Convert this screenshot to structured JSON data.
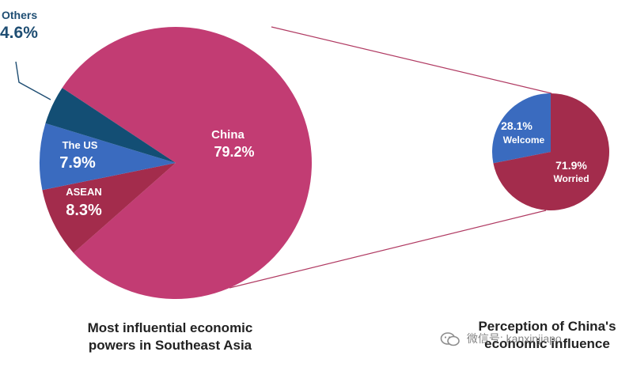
{
  "chart_data": [
    {
      "type": "pie",
      "title": "Most influential economic powers in Southeast Asia",
      "title_lines": [
        "Most influential economic",
        "powers in Southeast Asia"
      ],
      "slices": [
        {
          "name": "China",
          "value": 79.2,
          "label": "79.2%",
          "color": "#c23c73"
        },
        {
          "name": "ASEAN",
          "value": 8.3,
          "label": "8.3%",
          "color": "#a32c4c"
        },
        {
          "name": "The US",
          "value": 7.9,
          "label": "7.9%",
          "color": "#3a6bbf"
        },
        {
          "name": "Others",
          "value": 4.6,
          "label": "4.6%",
          "color": "#134e74"
        }
      ]
    },
    {
      "type": "pie",
      "title": "Perception of China's economic influence",
      "title_lines": [
        "Perception of China's",
        "economic influence"
      ],
      "slices": [
        {
          "name": "Welcome",
          "value": 28.1,
          "label": "28.1%",
          "color": "#3a6bbf"
        },
        {
          "name": "Worried",
          "value": 71.9,
          "label": "71.9%",
          "color": "#a32c4c"
        }
      ]
    }
  ],
  "watermark": {
    "text": "微信号: kanxinjiapo",
    "icon": "wechat-icon"
  }
}
